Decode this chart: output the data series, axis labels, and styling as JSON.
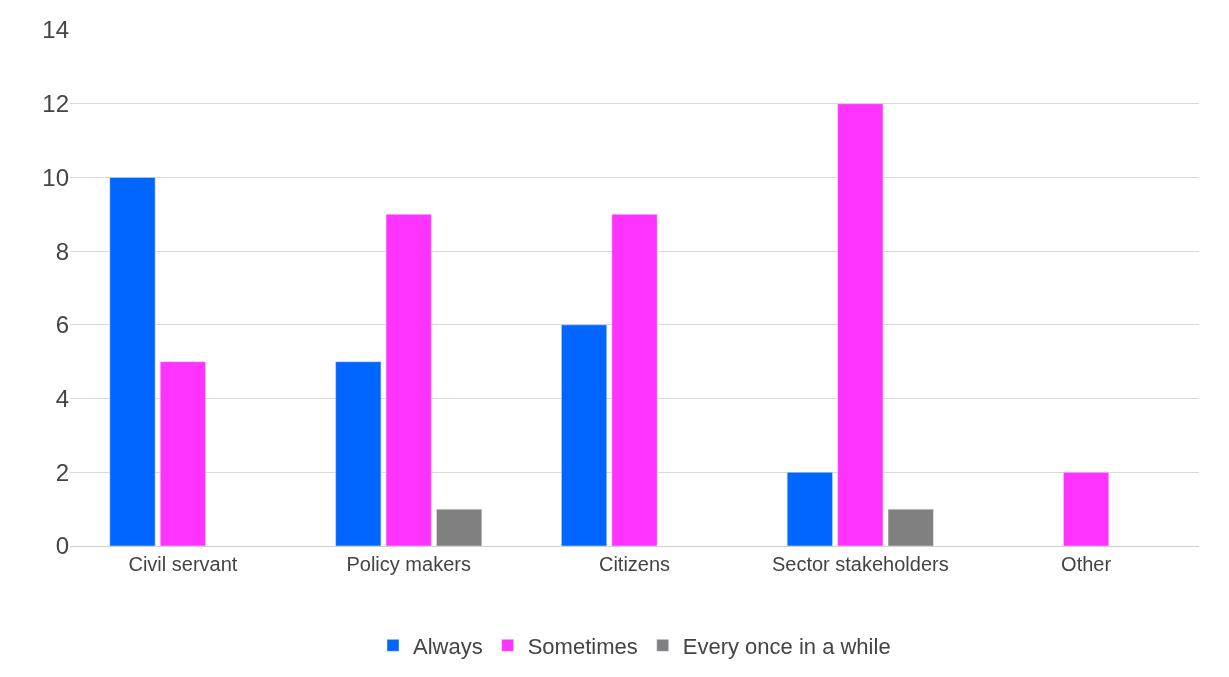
{
  "chart_data": {
    "type": "bar",
    "categories": [
      "Civil servant",
      "Policy makers",
      "Citizens",
      "Sector stakeholders",
      "Other"
    ],
    "series": [
      {
        "name": "Always",
        "color": "#0066ff",
        "values": [
          10,
          5,
          6,
          2,
          null
        ]
      },
      {
        "name": "Sometimes",
        "color": "#ff33ff",
        "values": [
          5,
          9,
          9,
          12,
          2
        ]
      },
      {
        "name": "Every once in a while",
        "color": "#808080",
        "values": [
          null,
          1,
          null,
          1,
          null
        ]
      }
    ],
    "ylim": [
      0,
      14
    ],
    "yticks": [
      0,
      2,
      4,
      6,
      8,
      10,
      12,
      14
    ],
    "grid": "y",
    "legend": "bottom"
  }
}
